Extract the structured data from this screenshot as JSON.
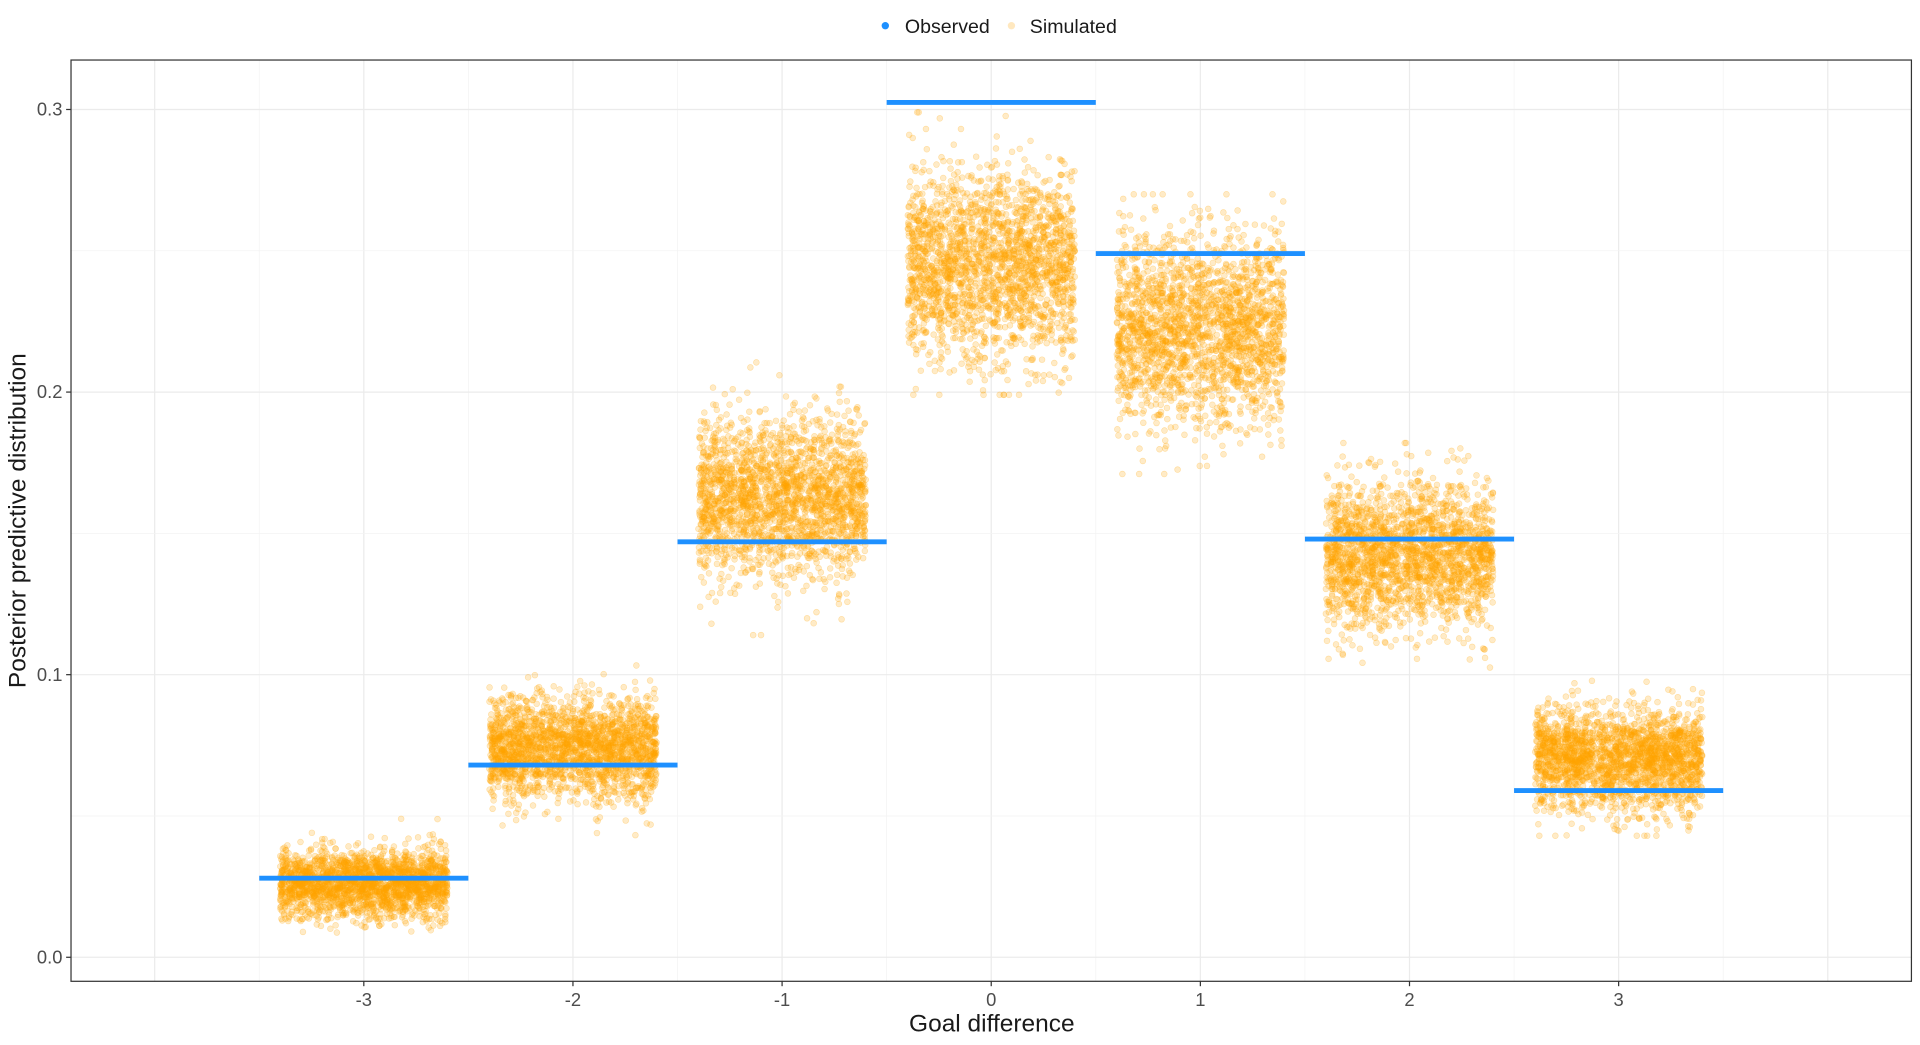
{
  "chart_data": {
    "type": "scatter",
    "xlabel": "Goal difference",
    "ylabel": "Posterior predictive distribution",
    "xlim": [
      -4.4,
      4.4
    ],
    "ylim": [
      -0.0085,
      0.3175
    ],
    "x_ticks": [
      -3,
      -2,
      -1,
      0,
      1,
      2,
      3
    ],
    "y_ticks": [
      0.0,
      0.1,
      0.2,
      0.3
    ],
    "y_tick_labels": [
      "0.0",
      "0.1",
      "0.2",
      "0.3"
    ],
    "grid": true,
    "legend": {
      "placement": "top",
      "entries": [
        "Observed",
        "Simulated"
      ]
    },
    "colors": {
      "observed": "#1E90FF",
      "simulated": "#FFA500"
    },
    "categories": [
      -3,
      -2,
      -1,
      0,
      1,
      2,
      3
    ],
    "observed": [
      0.028,
      0.068,
      0.147,
      0.3025,
      0.249,
      0.148,
      0.059
    ],
    "simulated_summary": {
      "mean": [
        0.026,
        0.074,
        0.163,
        0.245,
        0.222,
        0.142,
        0.07
      ],
      "sd": [
        0.006,
        0.009,
        0.014,
        0.017,
        0.017,
        0.013,
        0.009
      ],
      "min": [
        0.006,
        0.042,
        0.114,
        0.199,
        0.171,
        0.091,
        0.043
      ],
      "max": [
        0.049,
        0.109,
        0.213,
        0.299,
        0.27,
        0.182,
        0.106
      ]
    }
  }
}
